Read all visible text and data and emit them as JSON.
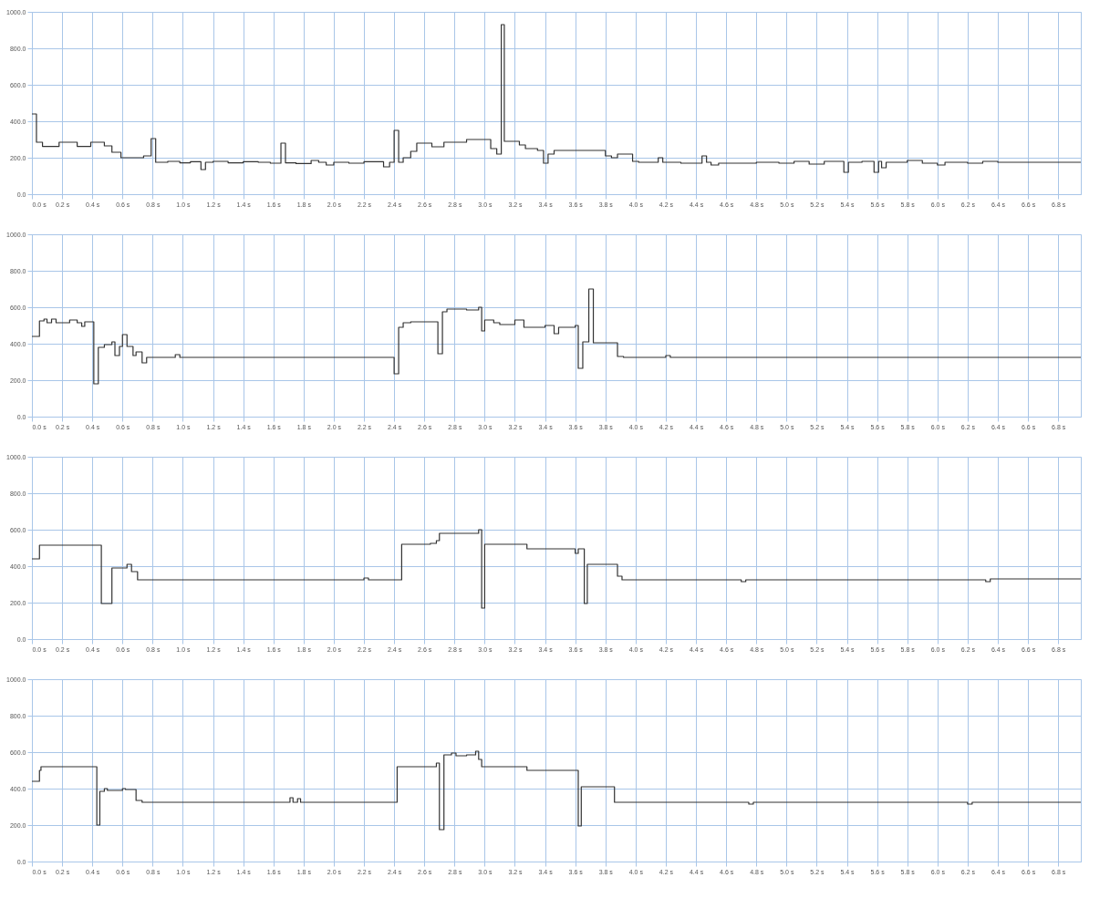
{
  "chart_data": [
    {
      "type": "step",
      "xlim": [
        0,
        6.95
      ],
      "ylim": [
        0,
        1000
      ],
      "grid": true,
      "xticks": [
        {
          "value": 0,
          "label": "0.0 s"
        },
        {
          "value": 0.2,
          "label": "0.2 s"
        },
        {
          "value": 0.4,
          "label": "0.4 s"
        },
        {
          "value": 0.6,
          "label": "0.6 s"
        },
        {
          "value": 0.8,
          "label": "0.8 s"
        },
        {
          "value": 1,
          "label": "1.0 s"
        },
        {
          "value": 1.2,
          "label": "1.2 s"
        },
        {
          "value": 1.4,
          "label": "1.4 s"
        },
        {
          "value": 1.6,
          "label": "1.6 s"
        },
        {
          "value": 1.8,
          "label": "1.8 s"
        },
        {
          "value": 2,
          "label": "2.0 s"
        },
        {
          "value": 2.2,
          "label": "2.2 s"
        },
        {
          "value": 2.4,
          "label": "2.4 s"
        },
        {
          "value": 2.6,
          "label": "2.6 s"
        },
        {
          "value": 2.8,
          "label": "2.8 s"
        },
        {
          "value": 3,
          "label": "3.0 s"
        },
        {
          "value": 3.2,
          "label": "3.2 s"
        },
        {
          "value": 3.4,
          "label": "3.4 s"
        },
        {
          "value": 3.6,
          "label": "3.6 s"
        },
        {
          "value": 3.8,
          "label": "3.8 s"
        },
        {
          "value": 4,
          "label": "4.0 s"
        },
        {
          "value": 4.2,
          "label": "4.2 s"
        },
        {
          "value": 4.4,
          "label": "4.4 s"
        },
        {
          "value": 4.6,
          "label": "4.6 s"
        },
        {
          "value": 4.8,
          "label": "4.8 s"
        },
        {
          "value": 5,
          "label": "5.0 s"
        },
        {
          "value": 5.2,
          "label": "5.2 s"
        },
        {
          "value": 5.4,
          "label": "5.4 s"
        },
        {
          "value": 5.6,
          "label": "5.6 s"
        },
        {
          "value": 5.8,
          "label": "5.8 s"
        },
        {
          "value": 6,
          "label": "6.0 s"
        },
        {
          "value": 6.2,
          "label": "6.2 s"
        },
        {
          "value": 6.4,
          "label": "6.4 s"
        },
        {
          "value": 6.6,
          "label": "6.6 s"
        },
        {
          "value": 6.8,
          "label": "6.8 s"
        }
      ],
      "yticks": [
        {
          "value": 0,
          "label": "0.0"
        },
        {
          "value": 200,
          "label": "200.0"
        },
        {
          "value": 400,
          "label": "400.0"
        },
        {
          "value": 600,
          "label": "600.0"
        },
        {
          "value": 800,
          "label": "800.0"
        },
        {
          "value": 1000,
          "label": "1000.0"
        }
      ],
      "series": [
        {
          "color": "#333333",
          "x": [
            0,
            0.03,
            0.07,
            0.18,
            0.3,
            0.39,
            0.48,
            0.53,
            0.59,
            0.74,
            0.79,
            0.82,
            0.9,
            0.98,
            1.05,
            1.12,
            1.15,
            1.2,
            1.3,
            1.4,
            1.5,
            1.58,
            1.65,
            1.68,
            1.75,
            1.85,
            1.9,
            1.95,
            2.0,
            2.1,
            2.2,
            2.33,
            2.37,
            2.4,
            2.43,
            2.46,
            2.51,
            2.55,
            2.65,
            2.73,
            2.88,
            3.04,
            3.08,
            3.11,
            3.13,
            3.23,
            3.27,
            3.35,
            3.39,
            3.42,
            3.46,
            3.8,
            3.84,
            3.88,
            3.98,
            4.02,
            4.15,
            4.18,
            4.3,
            4.44,
            4.47,
            4.5,
            4.55,
            4.8,
            4.95,
            5.05,
            5.15,
            5.25,
            5.38,
            5.41,
            5.5,
            5.58,
            5.61,
            5.63,
            5.66,
            5.8,
            5.9,
            6.0,
            6.05,
            6.2,
            6.3,
            6.4,
            6.95
          ],
          "values": [
            440,
            285,
            262,
            285,
            262,
            285,
            265,
            230,
            200,
            210,
            305,
            175,
            180,
            172,
            178,
            135,
            175,
            180,
            172,
            178,
            175,
            170,
            280,
            172,
            168,
            185,
            175,
            160,
            175,
            170,
            178,
            150,
            175,
            350,
            175,
            200,
            235,
            280,
            260,
            285,
            300,
            250,
            220,
            930,
            290,
            270,
            250,
            240,
            170,
            220,
            240,
            210,
            200,
            220,
            180,
            175,
            200,
            175,
            170,
            210,
            175,
            160,
            170,
            175,
            170,
            180,
            165,
            180,
            120,
            175,
            180,
            120,
            180,
            145,
            175,
            185,
            170,
            160,
            175,
            170,
            180,
            175,
            175
          ]
        }
      ]
    },
    {
      "type": "step",
      "xlim": [
        0,
        6.95
      ],
      "ylim": [
        0,
        1000
      ],
      "grid": true,
      "xticks": [
        {
          "value": 0,
          "label": "0.0 s"
        },
        {
          "value": 0.2,
          "label": "0.2 s"
        },
        {
          "value": 0.4,
          "label": "0.4 s"
        },
        {
          "value": 0.6,
          "label": "0.6 s"
        },
        {
          "value": 0.8,
          "label": "0.8 s"
        },
        {
          "value": 1,
          "label": "1.0 s"
        },
        {
          "value": 1.2,
          "label": "1.2 s"
        },
        {
          "value": 1.4,
          "label": "1.4 s"
        },
        {
          "value": 1.6,
          "label": "1.6 s"
        },
        {
          "value": 1.8,
          "label": "1.8 s"
        },
        {
          "value": 2,
          "label": "2.0 s"
        },
        {
          "value": 2.2,
          "label": "2.2 s"
        },
        {
          "value": 2.4,
          "label": "2.4 s"
        },
        {
          "value": 2.6,
          "label": "2.6 s"
        },
        {
          "value": 2.8,
          "label": "2.8 s"
        },
        {
          "value": 3,
          "label": "3.0 s"
        },
        {
          "value": 3.2,
          "label": "3.2 s"
        },
        {
          "value": 3.4,
          "label": "3.4 s"
        },
        {
          "value": 3.6,
          "label": "3.6 s"
        },
        {
          "value": 3.8,
          "label": "3.8 s"
        },
        {
          "value": 4,
          "label": "4.0 s"
        },
        {
          "value": 4.2,
          "label": "4.2 s"
        },
        {
          "value": 4.4,
          "label": "4.4 s"
        },
        {
          "value": 4.6,
          "label": "4.6 s"
        },
        {
          "value": 4.8,
          "label": "4.8 s"
        },
        {
          "value": 5,
          "label": "5.0 s"
        },
        {
          "value": 5.2,
          "label": "5.2 s"
        },
        {
          "value": 5.4,
          "label": "5.4 s"
        },
        {
          "value": 5.6,
          "label": "5.6 s"
        },
        {
          "value": 5.8,
          "label": "5.8 s"
        },
        {
          "value": 6,
          "label": "6.0 s"
        },
        {
          "value": 6.2,
          "label": "6.2 s"
        },
        {
          "value": 6.4,
          "label": "6.4 s"
        },
        {
          "value": 6.6,
          "label": "6.6 s"
        },
        {
          "value": 6.8,
          "label": "6.8 s"
        }
      ],
      "yticks": [
        {
          "value": 0,
          "label": "0.0"
        },
        {
          "value": 200,
          "label": "200.0"
        },
        {
          "value": 400,
          "label": "400.0"
        },
        {
          "value": 600,
          "label": "600.0"
        },
        {
          "value": 800,
          "label": "800.0"
        },
        {
          "value": 1000,
          "label": "1000.0"
        }
      ],
      "series": [
        {
          "color": "#333333",
          "x": [
            0,
            0.05,
            0.08,
            0.1,
            0.13,
            0.16,
            0.25,
            0.3,
            0.33,
            0.35,
            0.41,
            0.44,
            0.48,
            0.53,
            0.55,
            0.58,
            0.6,
            0.63,
            0.67,
            0.69,
            0.73,
            0.76,
            0.95,
            0.98,
            2.4,
            2.43,
            2.46,
            2.51,
            2.69,
            2.72,
            2.75,
            2.88,
            2.96,
            2.98,
            3.0,
            3.06,
            3.1,
            3.2,
            3.26,
            3.4,
            3.46,
            3.49,
            3.6,
            3.62,
            3.65,
            3.69,
            3.72,
            3.88,
            3.92,
            4.2,
            4.23,
            6.95
          ],
          "values": [
            440,
            525,
            535,
            515,
            535,
            515,
            530,
            515,
            495,
            520,
            180,
            380,
            395,
            410,
            335,
            385,
            450,
            385,
            335,
            355,
            295,
            325,
            340,
            325,
            235,
            490,
            515,
            520,
            345,
            575,
            590,
            585,
            600,
            470,
            530,
            515,
            505,
            530,
            490,
            500,
            455,
            490,
            500,
            265,
            410,
            700,
            405,
            330,
            325,
            335,
            325,
            325
          ]
        }
      ]
    },
    {
      "type": "step",
      "xlim": [
        0,
        6.95
      ],
      "ylim": [
        0,
        1000
      ],
      "grid": true,
      "xticks": [
        {
          "value": 0,
          "label": "0.0 s"
        },
        {
          "value": 0.2,
          "label": "0.2 s"
        },
        {
          "value": 0.4,
          "label": "0.4 s"
        },
        {
          "value": 0.6,
          "label": "0.6 s"
        },
        {
          "value": 0.8,
          "label": "0.8 s"
        },
        {
          "value": 1,
          "label": "1.0 s"
        },
        {
          "value": 1.2,
          "label": "1.2 s"
        },
        {
          "value": 1.4,
          "label": "1.4 s"
        },
        {
          "value": 1.6,
          "label": "1.6 s"
        },
        {
          "value": 1.8,
          "label": "1.8 s"
        },
        {
          "value": 2,
          "label": "2.0 s"
        },
        {
          "value": 2.2,
          "label": "2.2 s"
        },
        {
          "value": 2.4,
          "label": "2.4 s"
        },
        {
          "value": 2.6,
          "label": "2.6 s"
        },
        {
          "value": 2.8,
          "label": "2.8 s"
        },
        {
          "value": 3,
          "label": "3.0 s"
        },
        {
          "value": 3.2,
          "label": "3.2 s"
        },
        {
          "value": 3.4,
          "label": "3.4 s"
        },
        {
          "value": 3.6,
          "label": "3.6 s"
        },
        {
          "value": 3.8,
          "label": "3.8 s"
        },
        {
          "value": 4,
          "label": "4.0 s"
        },
        {
          "value": 4.2,
          "label": "4.2 s"
        },
        {
          "value": 4.4,
          "label": "4.4 s"
        },
        {
          "value": 4.6,
          "label": "4.6 s"
        },
        {
          "value": 4.8,
          "label": "4.8 s"
        },
        {
          "value": 5,
          "label": "5.0 s"
        },
        {
          "value": 5.2,
          "label": "5.2 s"
        },
        {
          "value": 5.4,
          "label": "5.4 s"
        },
        {
          "value": 5.6,
          "label": "5.6 s"
        },
        {
          "value": 5.8,
          "label": "5.8 s"
        },
        {
          "value": 6,
          "label": "6.0 s"
        },
        {
          "value": 6.2,
          "label": "6.2 s"
        },
        {
          "value": 6.4,
          "label": "6.4 s"
        },
        {
          "value": 6.6,
          "label": "6.6 s"
        },
        {
          "value": 6.8,
          "label": "6.8 s"
        }
      ],
      "yticks": [
        {
          "value": 0,
          "label": "0.0"
        },
        {
          "value": 200,
          "label": "200.0"
        },
        {
          "value": 400,
          "label": "400.0"
        },
        {
          "value": 600,
          "label": "600.0"
        },
        {
          "value": 800,
          "label": "800.0"
        },
        {
          "value": 1000,
          "label": "1000.0"
        }
      ],
      "series": [
        {
          "color": "#333333",
          "x": [
            0,
            0.05,
            0.46,
            0.53,
            0.63,
            0.66,
            0.7,
            2.2,
            2.23,
            2.45,
            2.64,
            2.68,
            2.7,
            2.96,
            2.98,
            3.0,
            3.28,
            3.6,
            3.62,
            3.66,
            3.68,
            3.88,
            3.91,
            4.7,
            4.73,
            6.32,
            6.35,
            6.95
          ],
          "values": [
            440,
            515,
            195,
            390,
            410,
            370,
            325,
            335,
            325,
            520,
            525,
            540,
            580,
            600,
            170,
            520,
            495,
            470,
            495,
            195,
            410,
            345,
            325,
            315,
            325,
            315,
            330,
            330
          ]
        }
      ]
    },
    {
      "type": "step",
      "xlim": [
        0,
        6.95
      ],
      "ylim": [
        0,
        1000
      ],
      "grid": true,
      "xticks": [
        {
          "value": 0,
          "label": "0.0 s"
        },
        {
          "value": 0.2,
          "label": "0.2 s"
        },
        {
          "value": 0.4,
          "label": "0.4 s"
        },
        {
          "value": 0.6,
          "label": "0.6 s"
        },
        {
          "value": 0.8,
          "label": "0.8 s"
        },
        {
          "value": 1,
          "label": "1.0 s"
        },
        {
          "value": 1.2,
          "label": "1.2 s"
        },
        {
          "value": 1.4,
          "label": "1.4 s"
        },
        {
          "value": 1.6,
          "label": "1.6 s"
        },
        {
          "value": 1.8,
          "label": "1.8 s"
        },
        {
          "value": 2,
          "label": "2.0 s"
        },
        {
          "value": 2.2,
          "label": "2.2 s"
        },
        {
          "value": 2.4,
          "label": "2.4 s"
        },
        {
          "value": 2.6,
          "label": "2.6 s"
        },
        {
          "value": 2.8,
          "label": "2.8 s"
        },
        {
          "value": 3,
          "label": "3.0 s"
        },
        {
          "value": 3.2,
          "label": "3.2 s"
        },
        {
          "value": 3.4,
          "label": "3.4 s"
        },
        {
          "value": 3.6,
          "label": "3.6 s"
        },
        {
          "value": 3.8,
          "label": "3.8 s"
        },
        {
          "value": 4,
          "label": "4.0 s"
        },
        {
          "value": 4.2,
          "label": "4.2 s"
        },
        {
          "value": 4.4,
          "label": "4.4 s"
        },
        {
          "value": 4.6,
          "label": "4.6 s"
        },
        {
          "value": 4.8,
          "label": "4.8 s"
        },
        {
          "value": 5,
          "label": "5.0 s"
        },
        {
          "value": 5.2,
          "label": "5.2 s"
        },
        {
          "value": 5.4,
          "label": "5.4 s"
        },
        {
          "value": 5.6,
          "label": "5.6 s"
        },
        {
          "value": 5.8,
          "label": "5.8 s"
        },
        {
          "value": 6,
          "label": "6.0 s"
        },
        {
          "value": 6.2,
          "label": "6.2 s"
        },
        {
          "value": 6.4,
          "label": "6.4 s"
        },
        {
          "value": 6.6,
          "label": "6.6 s"
        },
        {
          "value": 6.8,
          "label": "6.8 s"
        }
      ],
      "yticks": [
        {
          "value": 0,
          "label": "0.0"
        },
        {
          "value": 200,
          "label": "200.0"
        },
        {
          "value": 400,
          "label": "400.0"
        },
        {
          "value": 600,
          "label": "600.0"
        },
        {
          "value": 800,
          "label": "800.0"
        },
        {
          "value": 1000,
          "label": "1000.0"
        }
      ],
      "series": [
        {
          "color": "#333333",
          "x": [
            0,
            0.05,
            0.06,
            0.43,
            0.45,
            0.48,
            0.5,
            0.6,
            0.62,
            0.69,
            0.73,
            1.71,
            1.73,
            1.76,
            1.78,
            2.42,
            2.68,
            2.7,
            2.73,
            2.78,
            2.81,
            2.88,
            2.94,
            2.96,
            2.98,
            3.28,
            3.62,
            3.64,
            3.86,
            4.75,
            4.78,
            6.2,
            6.23,
            6.95
          ],
          "values": [
            440,
            500,
            520,
            200,
            385,
            400,
            390,
            400,
            395,
            335,
            325,
            350,
            325,
            345,
            325,
            520,
            540,
            175,
            585,
            595,
            580,
            585,
            605,
            560,
            520,
            500,
            195,
            410,
            325,
            315,
            325,
            315,
            325,
            325
          ]
        }
      ]
    }
  ]
}
